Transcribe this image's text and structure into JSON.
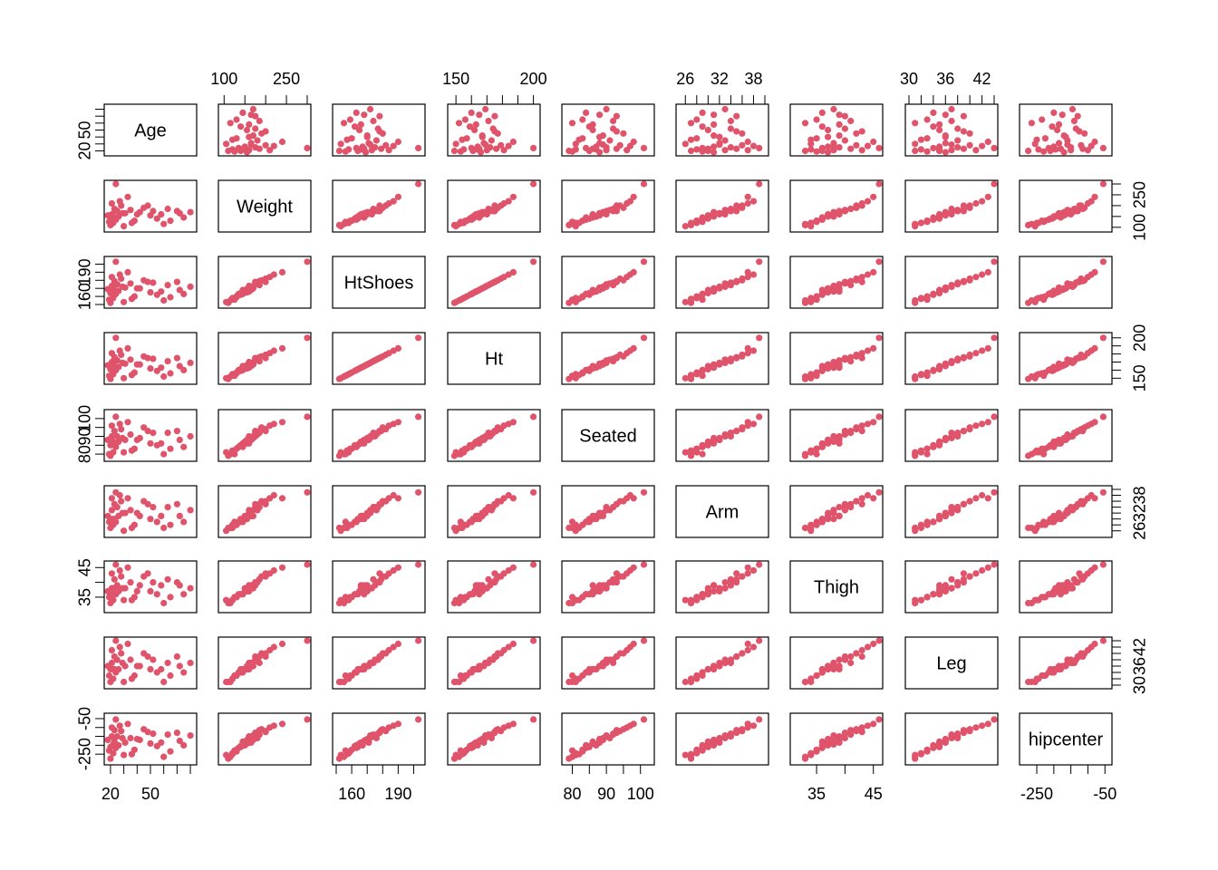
{
  "chart_data": {
    "type": "scatter-matrix",
    "point_color": "#DF536B",
    "variables": [
      "Age",
      "Weight",
      "HtShoes",
      "Ht",
      "Seated",
      "Arm",
      "Thigh",
      "Leg",
      "hipcenter"
    ],
    "ranges": {
      "Age": [
        18,
        82
      ],
      "Weight": [
        95,
        300
      ],
      "HtShoes": [
        150,
        205
      ],
      "Ht": [
        147,
        202
      ],
      "Seated": [
        78,
        103
      ],
      "Arm": [
        25,
        40
      ],
      "Thigh": [
        31,
        46
      ],
      "Leg": [
        30,
        44
      ],
      "hipcenter": [
        -290,
        -40
      ]
    },
    "ticks": {
      "Age": [
        20,
        30,
        40,
        50,
        60,
        70,
        80
      ],
      "Weight": [
        100,
        150,
        200,
        250,
        300
      ],
      "HtShoes": [
        150,
        160,
        170,
        180,
        190,
        200
      ],
      "Ht": [
        150,
        160,
        170,
        180,
        190,
        200
      ],
      "Seated": [
        80,
        85,
        90,
        95,
        100
      ],
      "Arm": [
        26,
        28,
        30,
        32,
        34,
        36,
        38,
        40
      ],
      "Thigh": [
        35,
        40,
        45
      ],
      "Leg": [
        30,
        32,
        34,
        36,
        38,
        40,
        42,
        44
      ],
      "hipcenter": [
        -250,
        -200,
        -150,
        -100,
        -50
      ]
    },
    "tick_labels": {
      "Age": [
        "20",
        "50"
      ],
      "Weight": [
        "100",
        "250"
      ],
      "HtShoes": [
        "160",
        "190"
      ],
      "Ht": [
        "150",
        "200"
      ],
      "Seated": [
        "80",
        "90",
        "100"
      ],
      "Arm": [
        "26",
        "32",
        "38"
      ],
      "Thigh": [
        "35",
        "45"
      ],
      "Leg": [
        "30",
        "36",
        "42"
      ],
      "hipcenter": [
        "-250",
        "-50"
      ]
    },
    "observations": [
      {
        "Age": 20,
        "Weight": 110,
        "HtShoes": 152,
        "Ht": 149,
        "Seated": 79,
        "Arm": 27,
        "Thigh": 33,
        "Leg": 31,
        "hipcenter": -275
      },
      {
        "Age": 22,
        "Weight": 120,
        "HtShoes": 158,
        "Ht": 155,
        "Seated": 81,
        "Arm": 28,
        "Thigh": 34,
        "Leg": 32,
        "hipcenter": -245
      },
      {
        "Age": 24,
        "Weight": 135,
        "HtShoes": 163,
        "Ht": 160,
        "Seated": 84,
        "Arm": 29,
        "Thigh": 36,
        "Leg": 34,
        "hipcenter": -215
      },
      {
        "Age": 26,
        "Weight": 150,
        "HtShoes": 167,
        "Ht": 164,
        "Seated": 87,
        "Arm": 31,
        "Thigh": 37,
        "Leg": 35,
        "hipcenter": -200
      },
      {
        "Age": 19,
        "Weight": 125,
        "HtShoes": 156,
        "Ht": 153,
        "Seated": 80,
        "Arm": 29,
        "Thigh": 35,
        "Leg": 33,
        "hipcenter": -230
      },
      {
        "Age": 31,
        "Weight": 165,
        "HtShoes": 171,
        "Ht": 168,
        "Seated": 88,
        "Arm": 32,
        "Thigh": 38,
        "Leg": 36,
        "hipcenter": -185
      },
      {
        "Age": 35,
        "Weight": 180,
        "HtShoes": 176,
        "Ht": 173,
        "Seated": 91,
        "Arm": 33,
        "Thigh": 40,
        "Leg": 38,
        "hipcenter": -160
      },
      {
        "Age": 23,
        "Weight": 145,
        "HtShoes": 168,
        "Ht": 165,
        "Seated": 86,
        "Arm": 30,
        "Thigh": 36,
        "Leg": 35,
        "hipcenter": -180
      },
      {
        "Age": 28,
        "Weight": 200,
        "HtShoes": 182,
        "Ht": 179,
        "Seated": 94,
        "Arm": 36,
        "Thigh": 42,
        "Leg": 40,
        "hipcenter": -120
      },
      {
        "Age": 21,
        "Weight": 160,
        "HtShoes": 173,
        "Ht": 170,
        "Seated": 90,
        "Arm": 33,
        "Thigh": 38,
        "Leg": 37,
        "hipcenter": -150
      },
      {
        "Age": 42,
        "Weight": 170,
        "HtShoes": 170,
        "Ht": 167,
        "Seated": 89,
        "Arm": 31,
        "Thigh": 39,
        "Leg": 36,
        "hipcenter": -170
      },
      {
        "Age": 50,
        "Weight": 155,
        "HtShoes": 165,
        "Ht": 162,
        "Seated": 86,
        "Arm": 30,
        "Thigh": 37,
        "Leg": 35,
        "hipcenter": -190
      },
      {
        "Age": 63,
        "Weight": 185,
        "HtShoes": 174,
        "Ht": 171,
        "Seated": 92,
        "Arm": 34,
        "Thigh": 41,
        "Leg": 37,
        "hipcenter": -140
      },
      {
        "Age": 70,
        "Weight": 175,
        "HtShoes": 178,
        "Ht": 175,
        "Seated": 93,
        "Arm": 35,
        "Thigh": 40,
        "Leg": 39,
        "hipcenter": -130
      },
      {
        "Age": 55,
        "Weight": 140,
        "HtShoes": 162,
        "Ht": 159,
        "Seated": 85,
        "Arm": 29,
        "Thigh": 36,
        "Leg": 34,
        "hipcenter": -205
      },
      {
        "Age": 45,
        "Weight": 190,
        "HtShoes": 180,
        "Ht": 177,
        "Seated": 95,
        "Arm": 36,
        "Thigh": 42,
        "Leg": 40,
        "hipcenter": -110
      },
      {
        "Age": 38,
        "Weight": 130,
        "HtShoes": 160,
        "Ht": 157,
        "Seated": 83,
        "Arm": 28,
        "Thigh": 35,
        "Leg": 33,
        "hipcenter": -225
      },
      {
        "Age": 27,
        "Weight": 220,
        "HtShoes": 187,
        "Ht": 184,
        "Seated": 97,
        "Arm": 38,
        "Thigh": 44,
        "Leg": 42,
        "hipcenter": -90
      },
      {
        "Age": 33,
        "Weight": 240,
        "HtShoes": 190,
        "Ht": 187,
        "Seated": 98,
        "Arm": 37,
        "Thigh": 45,
        "Leg": 43,
        "hipcenter": -80
      },
      {
        "Age": 24,
        "Weight": 300,
        "HtShoes": 203,
        "Ht": 200,
        "Seated": 101,
        "Arm": 39,
        "Thigh": 46,
        "Leg": 44,
        "hipcenter": -55
      },
      {
        "Age": 60,
        "Weight": 115,
        "HtShoes": 155,
        "Ht": 152,
        "Seated": 80,
        "Arm": 27,
        "Thigh": 33,
        "Leg": 31,
        "hipcenter": -265
      },
      {
        "Age": 72,
        "Weight": 165,
        "HtShoes": 168,
        "Ht": 165,
        "Seated": 88,
        "Arm": 31,
        "Thigh": 39,
        "Leg": 36,
        "hipcenter": -175
      },
      {
        "Age": 30,
        "Weight": 105,
        "HtShoes": 153,
        "Ht": 150,
        "Seated": 81,
        "Arm": 26,
        "Thigh": 34,
        "Leg": 31,
        "hipcenter": -255
      },
      {
        "Age": 25,
        "Weight": 175,
        "HtShoes": 175,
        "Ht": 172,
        "Seated": 90,
        "Arm": 34,
        "Thigh": 39,
        "Leg": 38,
        "hipcenter": -150
      },
      {
        "Age": 22,
        "Weight": 150,
        "HtShoes": 166,
        "Ht": 163,
        "Seated": 87,
        "Arm": 30,
        "Thigh": 38,
        "Leg": 35,
        "hipcenter": -195
      },
      {
        "Age": 40,
        "Weight": 160,
        "HtShoes": 170,
        "Ht": 167,
        "Seated": 88,
        "Arm": 32,
        "Thigh": 37,
        "Leg": 36,
        "hipcenter": -165
      },
      {
        "Age": 48,
        "Weight": 200,
        "HtShoes": 178,
        "Ht": 175,
        "Seated": 93,
        "Arm": 35,
        "Thigh": 43,
        "Leg": 39,
        "hipcenter": -125
      },
      {
        "Age": 80,
        "Weight": 170,
        "HtShoes": 172,
        "Ht": 169,
        "Seated": 90,
        "Arm": 33,
        "Thigh": 38,
        "Leg": 37,
        "hipcenter": -145
      },
      {
        "Age": 20,
        "Weight": 140,
        "HtShoes": 164,
        "Ht": 161,
        "Seated": 85,
        "Arm": 30,
        "Thigh": 36,
        "Leg": 35,
        "hipcenter": -210
      },
      {
        "Age": 23,
        "Weight": 185,
        "HtShoes": 179,
        "Ht": 176,
        "Seated": 93,
        "Arm": 35,
        "Thigh": 41,
        "Leg": 39,
        "hipcenter": -115
      },
      {
        "Age": 65,
        "Weight": 130,
        "HtShoes": 159,
        "Ht": 156,
        "Seated": 83,
        "Arm": 28,
        "Thigh": 35,
        "Leg": 33,
        "hipcenter": -235
      },
      {
        "Age": 18,
        "Weight": 155,
        "HtShoes": 169,
        "Ht": 166,
        "Seated": 88,
        "Arm": 31,
        "Thigh": 37,
        "Leg": 36,
        "hipcenter": -170
      },
      {
        "Age": 52,
        "Weight": 175,
        "HtShoes": 177,
        "Ht": 174,
        "Seated": 92,
        "Arm": 34,
        "Thigh": 40,
        "Leg": 38,
        "hipcenter": -135
      },
      {
        "Age": 36,
        "Weight": 120,
        "HtShoes": 157,
        "Ht": 154,
        "Seated": 82,
        "Arm": 27,
        "Thigh": 34,
        "Leg": 32,
        "hipcenter": -250
      },
      {
        "Age": 29,
        "Weight": 165,
        "HtShoes": 172,
        "Ht": 169,
        "Seated": 89,
        "Arm": 32,
        "Thigh": 38,
        "Leg": 37,
        "hipcenter": -160
      },
      {
        "Age": 75,
        "Weight": 145,
        "HtShoes": 163,
        "Ht": 160,
        "Seated": 84,
        "Arm": 29,
        "Thigh": 36,
        "Leg": 34,
        "hipcenter": -200
      },
      {
        "Age": 21,
        "Weight": 210,
        "HtShoes": 184,
        "Ht": 181,
        "Seated": 96,
        "Arm": 37,
        "Thigh": 43,
        "Leg": 41,
        "hipcenter": -100
      },
      {
        "Age": 58,
        "Weight": 160,
        "HtShoes": 166,
        "Ht": 163,
        "Seated": 86,
        "Arm": 31,
        "Thigh": 39,
        "Leg": 35,
        "hipcenter": -185
      }
    ]
  }
}
